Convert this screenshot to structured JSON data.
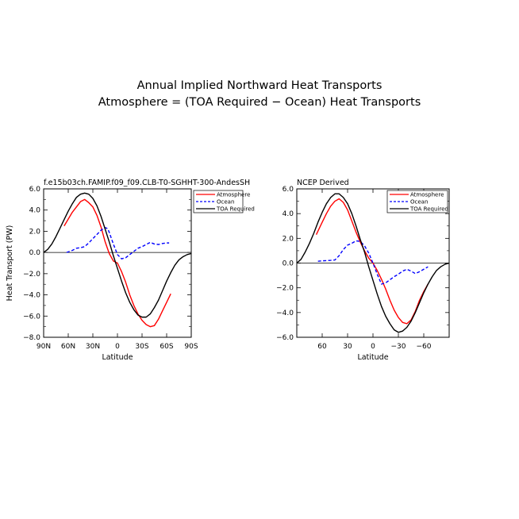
{
  "title_line1": "Annual Implied Northward Heat Transports",
  "title_line2": "Atmosphere = (TOA Required − Ocean) Heat Transports",
  "chart_data": [
    {
      "type": "line",
      "title": "f.e15b03ch.FAMIP.f09_f09.CLB-T0-SGHHT-300-AndesSH",
      "xlabel": "Latitude",
      "ylabel": "Heat Transport (PW)",
      "xlim": [
        90,
        -90
      ],
      "ylim": [
        -8,
        6
      ],
      "xticks": [
        90,
        60,
        30,
        0,
        -30,
        -60,
        -90
      ],
      "xtick_labels": [
        "90N",
        "60N",
        "30N",
        "0",
        "30S",
        "60S",
        "90S"
      ],
      "yticks": [
        -8,
        -6,
        -4,
        -2,
        0,
        2,
        4,
        6
      ],
      "ytick_labels": [
        "−8.0",
        "−6.0",
        "−4.0",
        "−2.0",
        "0.0",
        "2.0",
        "4.0",
        "6.0"
      ],
      "legend_position": "top-right",
      "series": [
        {
          "name": "Atmosphere",
          "color": "#ff0000",
          "dash": "solid",
          "x": [
            65,
            55,
            45,
            40,
            35,
            30,
            25,
            20,
            15,
            10,
            5,
            0,
            -5,
            -10,
            -15,
            -20,
            -25,
            -30,
            -35,
            -40,
            -45,
            -50,
            -55,
            -60,
            -65
          ],
          "y": [
            2.5,
            3.8,
            4.8,
            5.0,
            4.7,
            4.3,
            3.5,
            2.4,
            1.0,
            -0.1,
            -0.8,
            -1.0,
            -1.8,
            -2.8,
            -4.0,
            -5.0,
            -5.8,
            -6.4,
            -6.8,
            -7.0,
            -6.9,
            -6.3,
            -5.5,
            -4.7,
            -3.9
          ]
        },
        {
          "name": "Ocean",
          "color": "#0000ff",
          "dash": "dashed",
          "x": [
            62,
            55,
            50,
            45,
            40,
            35,
            30,
            25,
            20,
            15,
            12,
            10,
            5,
            0,
            -5,
            -10,
            -15,
            -20,
            -25,
            -30,
            -35,
            -40,
            -45,
            -50,
            -55,
            -60,
            -63
          ],
          "y": [
            0.0,
            0.2,
            0.4,
            0.45,
            0.55,
            0.9,
            1.3,
            1.7,
            2.1,
            2.35,
            2.25,
            1.9,
            0.8,
            -0.2,
            -0.6,
            -0.5,
            -0.2,
            0.1,
            0.4,
            0.55,
            0.75,
            0.95,
            0.8,
            0.75,
            0.85,
            0.9,
            0.9
          ]
        },
        {
          "name": "TOA Required",
          "color": "#000000",
          "dash": "solid",
          "x": [
            90,
            85,
            80,
            75,
            70,
            65,
            60,
            55,
            50,
            45,
            40,
            35,
            30,
            25,
            20,
            15,
            10,
            5,
            0,
            -5,
            -10,
            -15,
            -20,
            -25,
            -30,
            -35,
            -40,
            -45,
            -50,
            -55,
            -60,
            -65,
            -70,
            -75,
            -80,
            -85,
            -90
          ],
          "y": [
            0,
            0.3,
            0.8,
            1.5,
            2.3,
            3.1,
            3.9,
            4.6,
            5.2,
            5.5,
            5.6,
            5.5,
            5.1,
            4.4,
            3.4,
            2.2,
            1.0,
            -0.3,
            -1.5,
            -2.7,
            -3.8,
            -4.7,
            -5.4,
            -5.9,
            -6.1,
            -6.1,
            -5.8,
            -5.2,
            -4.5,
            -3.6,
            -2.7,
            -1.9,
            -1.2,
            -0.7,
            -0.4,
            -0.2,
            -0.1
          ]
        }
      ]
    },
    {
      "type": "line",
      "title": "NCEP Derived",
      "xlabel": "Latitude",
      "ylabel": "",
      "xlim": [
        90,
        -90
      ],
      "ylim": [
        -6,
        6
      ],
      "xticks": [
        60,
        30,
        0,
        -30,
        -60
      ],
      "xtick_labels": [
        "60",
        "30",
        "0",
        "−30",
        "−60"
      ],
      "yticks": [
        -6,
        -4,
        -2,
        0,
        2,
        4,
        6
      ],
      "ytick_labels": [
        "−6.0",
        "−4.0",
        "−2.0",
        "0.0",
        "2.0",
        "4.0",
        "6.0"
      ],
      "legend_position": "top-right",
      "series": [
        {
          "name": "Atmosphere",
          "color": "#ff0000",
          "dash": "solid",
          "x": [
            67,
            60,
            55,
            50,
            45,
            40,
            35,
            30,
            25,
            20,
            15,
            10,
            5,
            0,
            -5,
            -10,
            -15,
            -20,
            -25,
            -30,
            -35,
            -40,
            -45,
            -50,
            -55,
            -60,
            -65
          ],
          "y": [
            2.3,
            3.3,
            4.0,
            4.6,
            5.0,
            5.2,
            4.9,
            4.3,
            3.4,
            2.5,
            1.7,
            1.0,
            0.4,
            0.0,
            -0.6,
            -1.3,
            -2.1,
            -3.0,
            -3.8,
            -4.4,
            -4.8,
            -4.9,
            -4.6,
            -3.9,
            -3.0,
            -2.3,
            -1.7
          ]
        },
        {
          "name": "Ocean",
          "color": "#0000ff",
          "dash": "dashed",
          "x": [
            65,
            60,
            55,
            50,
            45,
            40,
            35,
            30,
            25,
            20,
            15,
            10,
            5,
            0,
            -5,
            -10,
            -15,
            -20,
            -25,
            -30,
            -35,
            -40,
            -45,
            -50,
            -55,
            -60,
            -65
          ],
          "y": [
            0.15,
            0.18,
            0.2,
            0.22,
            0.25,
            0.6,
            1.1,
            1.45,
            1.6,
            1.8,
            1.75,
            1.4,
            0.8,
            0.0,
            -0.9,
            -1.7,
            -1.6,
            -1.35,
            -1.1,
            -0.9,
            -0.65,
            -0.5,
            -0.65,
            -0.85,
            -0.7,
            -0.5,
            -0.3
          ]
        },
        {
          "name": "TOA Required",
          "color": "#000000",
          "dash": "solid",
          "x": [
            90,
            85,
            80,
            75,
            70,
            65,
            60,
            55,
            50,
            45,
            40,
            35,
            30,
            25,
            20,
            15,
            10,
            5,
            0,
            -5,
            -10,
            -15,
            -20,
            -25,
            -30,
            -35,
            -40,
            -45,
            -50,
            -55,
            -60,
            -65,
            -70,
            -75,
            -80,
            -85,
            -90
          ],
          "y": [
            0,
            0.3,
            0.9,
            1.6,
            2.4,
            3.3,
            4.1,
            4.8,
            5.3,
            5.6,
            5.6,
            5.3,
            4.8,
            4.0,
            3.0,
            1.9,
            0.9,
            -0.3,
            -1.4,
            -2.5,
            -3.5,
            -4.3,
            -4.9,
            -5.4,
            -5.6,
            -5.5,
            -5.2,
            -4.7,
            -4.0,
            -3.2,
            -2.4,
            -1.7,
            -1.1,
            -0.6,
            -0.3,
            -0.1,
            0.0
          ]
        }
      ]
    }
  ]
}
